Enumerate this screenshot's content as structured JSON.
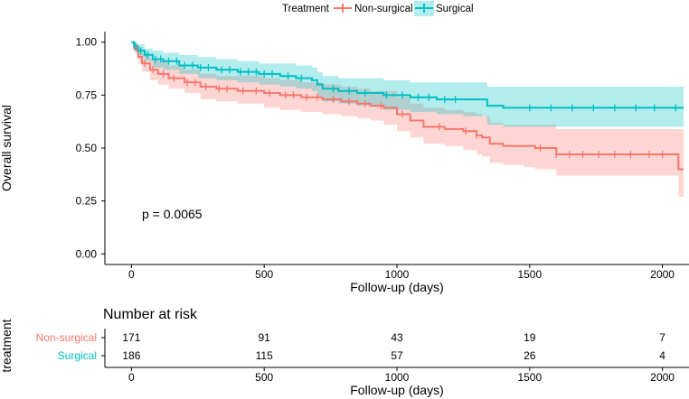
{
  "legend": {
    "title": "Treatment",
    "entries": [
      {
        "label": "Non-surgical",
        "color": "#F8766D"
      },
      {
        "label": "Surgical",
        "color": "#00BFC4"
      }
    ]
  },
  "chart_data": {
    "type": "line",
    "subtype": "kaplan-meier",
    "xlabel": "Follow-up (days)",
    "ylabel": "Overall survival",
    "xlim": [
      -100,
      2100
    ],
    "ylim": [
      -0.05,
      1.05
    ],
    "xticks": [
      0,
      500,
      1000,
      1500,
      2000
    ],
    "yticks": [
      0.0,
      0.25,
      0.5,
      0.75,
      1.0
    ],
    "ytick_labels": [
      "0.00",
      "0.25",
      "0.50",
      "0.75",
      "1.00"
    ],
    "annotation": "p = 0.0065",
    "series": [
      {
        "name": "Non-surgical",
        "color": "#F8766D",
        "fill": "#F8766D",
        "x": [
          0,
          10,
          25,
          40,
          70,
          100,
          140,
          200,
          260,
          320,
          400,
          500,
          560,
          640,
          720,
          790,
          850,
          900,
          950,
          1000,
          1050,
          1100,
          1180,
          1250,
          1300,
          1320,
          1350,
          1400,
          1480,
          1520,
          1600,
          1700,
          1800,
          1900,
          2000,
          2060,
          2080
        ],
        "y": [
          1.0,
          0.97,
          0.93,
          0.9,
          0.87,
          0.85,
          0.83,
          0.81,
          0.79,
          0.78,
          0.77,
          0.76,
          0.75,
          0.74,
          0.73,
          0.72,
          0.71,
          0.7,
          0.69,
          0.66,
          0.63,
          0.6,
          0.59,
          0.58,
          0.56,
          0.55,
          0.52,
          0.51,
          0.51,
          0.5,
          0.47,
          0.47,
          0.47,
          0.47,
          0.47,
          0.4,
          0.4
        ],
        "lower": [
          1.0,
          0.95,
          0.9,
          0.86,
          0.82,
          0.8,
          0.78,
          0.76,
          0.73,
          0.72,
          0.71,
          0.69,
          0.68,
          0.67,
          0.66,
          0.65,
          0.64,
          0.63,
          0.61,
          0.58,
          0.55,
          0.52,
          0.51,
          0.49,
          0.47,
          0.46,
          0.43,
          0.42,
          0.41,
          0.4,
          0.37,
          0.37,
          0.37,
          0.37,
          0.37,
          0.27,
          0.27
        ],
        "upper": [
          1.0,
          0.99,
          0.97,
          0.95,
          0.92,
          0.91,
          0.89,
          0.87,
          0.85,
          0.84,
          0.84,
          0.83,
          0.82,
          0.81,
          0.8,
          0.79,
          0.78,
          0.77,
          0.77,
          0.74,
          0.71,
          0.69,
          0.68,
          0.67,
          0.66,
          0.65,
          0.62,
          0.61,
          0.61,
          0.61,
          0.59,
          0.59,
          0.59,
          0.59,
          0.59,
          0.59,
          0.59
        ],
        "censor_x": [
          20,
          50,
          80,
          120,
          160,
          210,
          240,
          280,
          330,
          360,
          420,
          470,
          520,
          580,
          610,
          660,
          700,
          760,
          820,
          880,
          940,
          1020,
          1160,
          1260,
          1300,
          1540,
          1600,
          1650,
          1700,
          1760,
          1820,
          1880,
          1950,
          2000
        ]
      },
      {
        "name": "Surgical",
        "color": "#00BFC4",
        "fill": "#00BFC4",
        "x": [
          0,
          10,
          25,
          50,
          80,
          120,
          180,
          250,
          320,
          400,
          480,
          560,
          620,
          680,
          700,
          720,
          780,
          850,
          950,
          1050,
          1150,
          1250,
          1340,
          1400,
          1600,
          1800,
          2000,
          2080
        ],
        "y": [
          1.0,
          0.98,
          0.96,
          0.94,
          0.92,
          0.91,
          0.89,
          0.88,
          0.87,
          0.86,
          0.85,
          0.84,
          0.83,
          0.82,
          0.8,
          0.78,
          0.77,
          0.76,
          0.75,
          0.74,
          0.73,
          0.73,
          0.7,
          0.69,
          0.69,
          0.69,
          0.69,
          0.69
        ],
        "lower": [
          1.0,
          0.96,
          0.93,
          0.91,
          0.88,
          0.87,
          0.85,
          0.83,
          0.82,
          0.81,
          0.8,
          0.79,
          0.78,
          0.77,
          0.74,
          0.72,
          0.71,
          0.7,
          0.68,
          0.67,
          0.66,
          0.65,
          0.61,
          0.6,
          0.6,
          0.6,
          0.6,
          0.6
        ],
        "upper": [
          1.0,
          1.0,
          0.99,
          0.97,
          0.96,
          0.95,
          0.94,
          0.93,
          0.92,
          0.91,
          0.9,
          0.9,
          0.89,
          0.88,
          0.86,
          0.84,
          0.83,
          0.83,
          0.82,
          0.81,
          0.81,
          0.81,
          0.79,
          0.79,
          0.79,
          0.79,
          0.79,
          0.79
        ],
        "censor_x": [
          15,
          35,
          60,
          90,
          110,
          140,
          170,
          200,
          230,
          260,
          290,
          340,
          370,
          410,
          440,
          470,
          500,
          530,
          590,
          640,
          760,
          820,
          880,
          960,
          1020,
          1080,
          1120,
          1180,
          1220,
          1500,
          1580,
          1660,
          1740,
          1820,
          1900,
          1970,
          2050
        ]
      }
    ]
  },
  "risk_table": {
    "title": "Number at risk",
    "y_axis_label": "treatment",
    "xlabel": "Follow-up (days)",
    "xticks": [
      0,
      500,
      1000,
      1500,
      2000
    ],
    "rows": [
      {
        "label": "Non-surgical",
        "color": "#F8766D",
        "values": [
          "171",
          "91",
          "43",
          "19",
          "7"
        ]
      },
      {
        "label": "Surgical",
        "color": "#00BFC4",
        "values": [
          "186",
          "115",
          "57",
          "26",
          "4"
        ]
      }
    ]
  }
}
